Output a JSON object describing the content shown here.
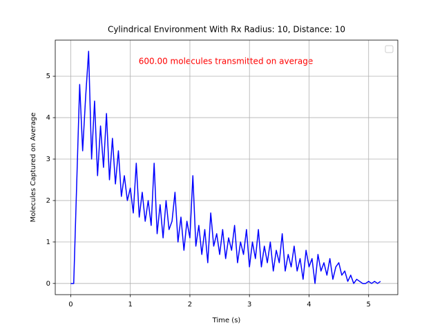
{
  "chart_data": {
    "type": "line",
    "title": "Cylindrical Environment With Rx Radius: 10, Distance: 10",
    "xlabel": "Time (s)",
    "ylabel": "Molecules Captured on Average",
    "annotation": "600.00 molecules transmitted on average",
    "annotation_color": "#ff0000",
    "grid": true,
    "legend": "upper right",
    "xlim": [
      -0.26,
      5.49
    ],
    "ylim": [
      -0.27,
      5.87
    ],
    "xticks": [
      0,
      1,
      2,
      3,
      4,
      5
    ],
    "yticks": [
      0,
      1,
      2,
      3,
      4,
      5
    ],
    "x": [
      0,
      0.05,
      0.1,
      0.15,
      0.2,
      0.25,
      0.3,
      0.35,
      0.4,
      0.45,
      0.5,
      0.55,
      0.6,
      0.65,
      0.7,
      0.75,
      0.8,
      0.85,
      0.9,
      0.95,
      1,
      1.05,
      1.1,
      1.15,
      1.2,
      1.25,
      1.3,
      1.35,
      1.4,
      1.45,
      1.5,
      1.55,
      1.6,
      1.65,
      1.7,
      1.75,
      1.8,
      1.85,
      1.9,
      1.95,
      2,
      2.05,
      2.1,
      2.15,
      2.2,
      2.25,
      2.3,
      2.35,
      2.4,
      2.45,
      2.5,
      2.55,
      2.6,
      2.65,
      2.7,
      2.75,
      2.8,
      2.85,
      2.9,
      2.95,
      3,
      3.05,
      3.1,
      3.15,
      3.2,
      3.25,
      3.3,
      3.35,
      3.4,
      3.45,
      3.5,
      3.55,
      3.6,
      3.65,
      3.7,
      3.75,
      3.8,
      3.85,
      3.9,
      3.95,
      4,
      4.05,
      4.1,
      4.15,
      4.2,
      4.25,
      4.3,
      4.35,
      4.4,
      4.45,
      4.5,
      4.55,
      4.6,
      4.65,
      4.7,
      4.75,
      4.8,
      4.85,
      4.9,
      4.95,
      5,
      5.05,
      5.1,
      5.15,
      5.2
    ],
    "series": [
      {
        "color": "#0000ff",
        "values": [
          0,
          0,
          2.4,
          4.8,
          3.2,
          4.5,
          5.6,
          3.0,
          4.4,
          2.6,
          3.8,
          2.8,
          4.1,
          2.5,
          3.5,
          2.4,
          3.2,
          2.1,
          2.6,
          2.0,
          2.3,
          1.7,
          2.9,
          1.6,
          2.2,
          1.5,
          2.0,
          1.4,
          2.9,
          1.2,
          1.9,
          1.1,
          2.0,
          1.3,
          1.5,
          2.2,
          1.0,
          1.6,
          0.8,
          1.5,
          1.1,
          2.6,
          0.9,
          1.4,
          0.7,
          1.3,
          0.5,
          1.7,
          0.9,
          1.2,
          0.7,
          1.3,
          0.6,
          1.1,
          0.8,
          1.4,
          0.5,
          1.0,
          0.7,
          1.3,
          0.4,
          1.0,
          0.6,
          1.3,
          0.4,
          0.9,
          0.5,
          1.0,
          0.3,
          0.8,
          0.5,
          1.2,
          0.3,
          0.7,
          0.4,
          0.9,
          0.3,
          0.6,
          0.1,
          0.8,
          0.4,
          0.6,
          0.0,
          0.7,
          0.3,
          0.5,
          0.2,
          0.6,
          0.1,
          0.4,
          0.5,
          0.2,
          0.3,
          0.05,
          0.2,
          0.0,
          0.1,
          0.05,
          0.0,
          0.0,
          0.05,
          0.0,
          0.05,
          0.0,
          0.05
        ]
      }
    ]
  }
}
